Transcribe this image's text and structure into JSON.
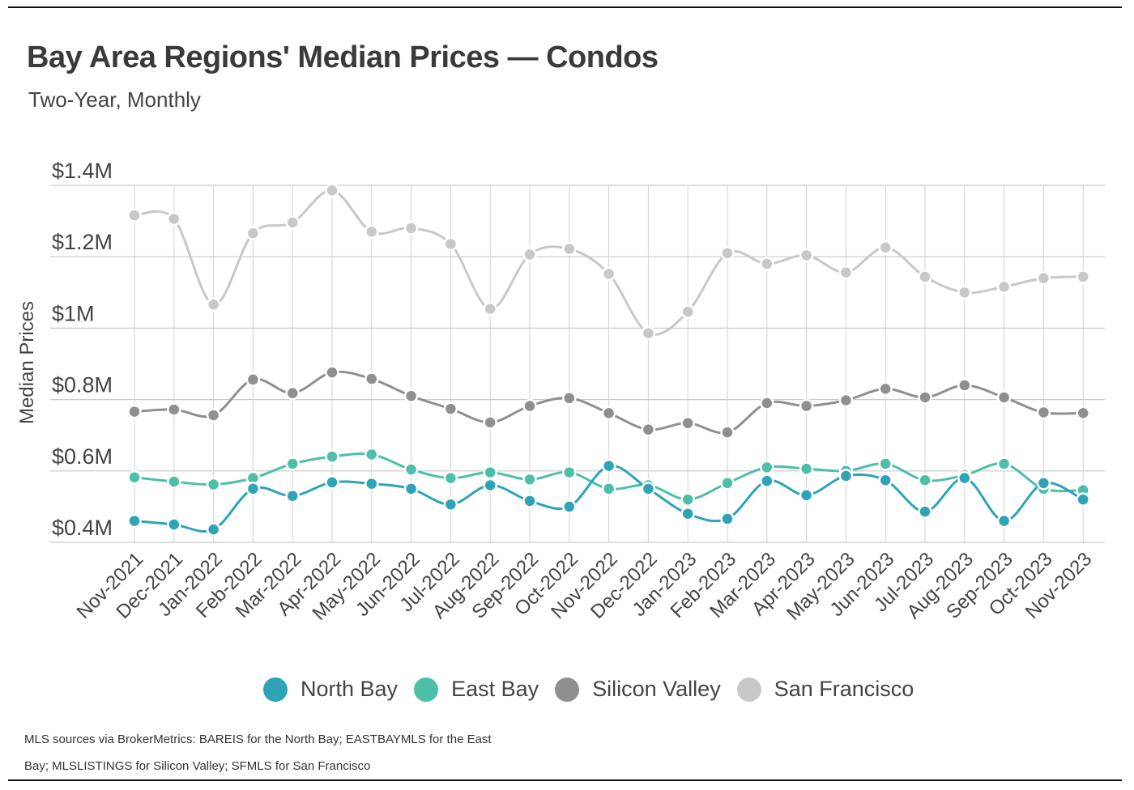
{
  "chart_data": {
    "type": "line",
    "title": "Bay Area Regions' Median Prices — Condos",
    "subtitle": "Two-Year, Monthly",
    "ylabel": "Median Prices",
    "xlabel": "",
    "ylim": [
      0.4,
      1.4
    ],
    "yticks": [
      {
        "value": 1.4,
        "label": "$1.4M"
      },
      {
        "value": 1.2,
        "label": "$1.2M"
      },
      {
        "value": 1.0,
        "label": "$1M"
      },
      {
        "value": 0.8,
        "label": "$0.8M"
      },
      {
        "value": 0.6,
        "label": "$0.6M"
      },
      {
        "value": 0.4,
        "label": "$0.4M"
      }
    ],
    "categories": [
      "Nov-2021",
      "Dec-2021",
      "Jan-2022",
      "Feb-2022",
      "Mar-2022",
      "Apr-2022",
      "May-2022",
      "Jun-2022",
      "Jul-2022",
      "Aug-2022",
      "Sep-2022",
      "Oct-2022",
      "Nov-2022",
      "Dec-2022",
      "Jan-2023",
      "Feb-2023",
      "Mar-2023",
      "Apr-2023",
      "May-2023",
      "Jun-2023",
      "Jul-2023",
      "Aug-2023",
      "Sep-2023",
      "Oct-2023",
      "Nov-2023"
    ],
    "series": [
      {
        "name": "San Francisco",
        "color": "#c8c8c8",
        "values": [
          1.316,
          1.306,
          1.066,
          1.266,
          1.296,
          1.386,
          1.27,
          1.28,
          1.236,
          1.054,
          1.206,
          1.222,
          1.152,
          0.986,
          1.046,
          1.21,
          1.18,
          1.204,
          1.156,
          1.226,
          1.144,
          1.1,
          1.116,
          1.14,
          1.144
        ]
      },
      {
        "name": "Silicon Valley",
        "color": "#8f8f8f",
        "values": [
          0.766,
          0.772,
          0.756,
          0.856,
          0.818,
          0.876,
          0.858,
          0.81,
          0.774,
          0.736,
          0.782,
          0.804,
          0.762,
          0.716,
          0.734,
          0.708,
          0.79,
          0.782,
          0.798,
          0.83,
          0.806,
          0.84,
          0.806,
          0.764,
          0.762
        ]
      },
      {
        "name": "East Bay",
        "color": "#4dbfa8",
        "values": [
          0.582,
          0.57,
          0.562,
          0.58,
          0.62,
          0.64,
          0.646,
          0.604,
          0.58,
          0.596,
          0.576,
          0.596,
          0.55,
          0.56,
          0.52,
          0.566,
          0.61,
          0.606,
          0.6,
          0.62,
          0.574,
          0.588,
          0.62,
          0.55,
          0.546
        ]
      },
      {
        "name": "North Bay",
        "color": "#2fa3b8",
        "values": [
          0.46,
          0.45,
          0.436,
          0.55,
          0.53,
          0.568,
          0.564,
          0.55,
          0.506,
          0.56,
          0.516,
          0.5,
          0.614,
          0.55,
          0.48,
          0.466,
          0.572,
          0.532,
          0.586,
          0.574,
          0.486,
          0.58,
          0.46,
          0.566,
          0.52
        ]
      }
    ],
    "legend": [
      {
        "name": "North Bay",
        "color": "#2fa3b8"
      },
      {
        "name": "East Bay",
        "color": "#4dbfa8"
      },
      {
        "name": "Silicon Valley",
        "color": "#8f8f8f"
      },
      {
        "name": "San Francisco",
        "color": "#c8c8c8"
      }
    ],
    "grid": true,
    "legend_position": "bottom"
  },
  "source_note": "MLS sources via BrokerMetrics: BAREIS for the North Bay; EASTBAYMLS for the East Bay; MLSLISTINGS for Silicon Valley; SFMLS for San Francisco"
}
